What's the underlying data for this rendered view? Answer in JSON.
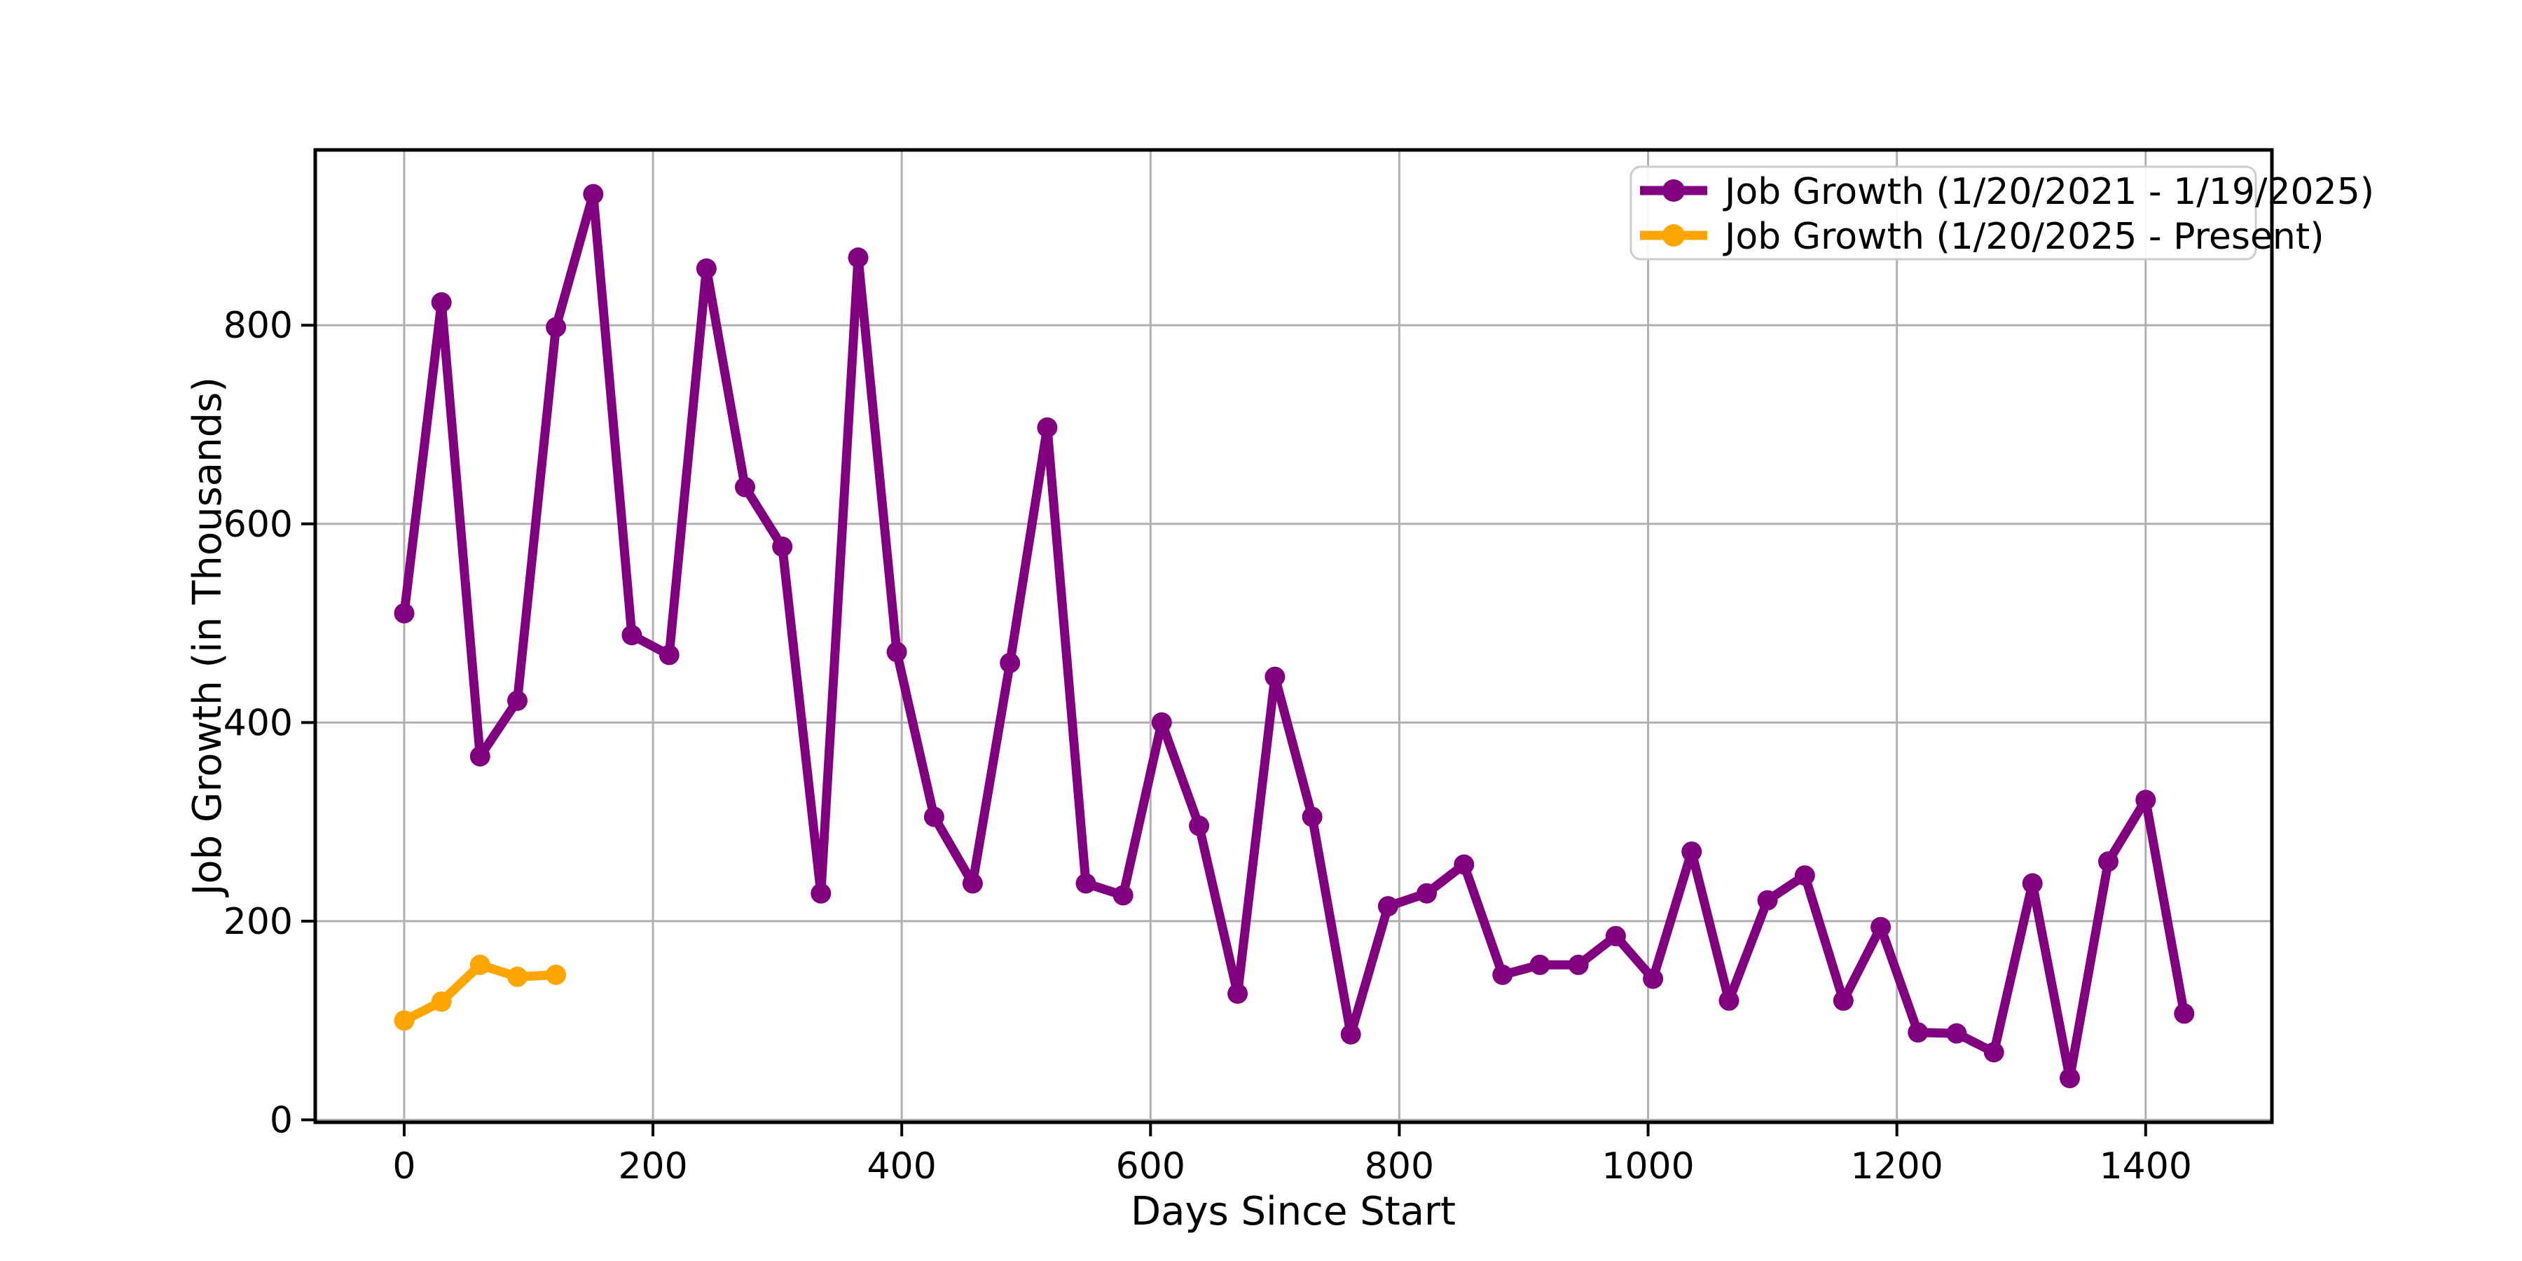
{
  "figure": {
    "background_color": "#ffffff",
    "grid_color": "#b0b0b0",
    "spine_color": "#000000",
    "legend_border_color": "#cccccc"
  },
  "chart_data": {
    "type": "line",
    "title": "",
    "xlabel": "Days Since Start",
    "ylabel": "Job Growth (in Thousands)",
    "xlim": [
      -71.5,
      1501.5
    ],
    "ylim": [
      -2.5,
      976.5
    ],
    "xticks": [
      0,
      200,
      400,
      600,
      800,
      1000,
      1200,
      1400
    ],
    "yticks": [
      0,
      200,
      400,
      600,
      800
    ],
    "grid": true,
    "legend_position": "upper right",
    "series": [
      {
        "name": "Job Growth (1/20/2021 - 1/19/2025)",
        "color": "#800080",
        "x": [
          0,
          30,
          61,
          91,
          122,
          152,
          183,
          213,
          243,
          274,
          304,
          335,
          365,
          396,
          426,
          457,
          487,
          517,
          548,
          578,
          609,
          639,
          670,
          700,
          730,
          761,
          791,
          822,
          852,
          883,
          913,
          944,
          974,
          1004,
          1035,
          1065,
          1096,
          1126,
          1157,
          1187,
          1217,
          1248,
          1278,
          1309,
          1339,
          1370,
          1400,
          1431
        ],
        "y": [
          510,
          823,
          366,
          422,
          798,
          932,
          488,
          468,
          857,
          637,
          577,
          228,
          868,
          471,
          305,
          238,
          460,
          697,
          238,
          226,
          400,
          296,
          127,
          446,
          305,
          86,
          215,
          228,
          257,
          146,
          156,
          156,
          185,
          142,
          270,
          120,
          221,
          246,
          120,
          194,
          88,
          87,
          68,
          238,
          42,
          260,
          322,
          107
        ]
      },
      {
        "name": "Job Growth (1/20/2025 - Present)",
        "color": "#FFA500",
        "x": [
          0,
          30,
          61,
          91,
          122
        ],
        "y": [
          100,
          119,
          156,
          144,
          146
        ]
      }
    ]
  }
}
